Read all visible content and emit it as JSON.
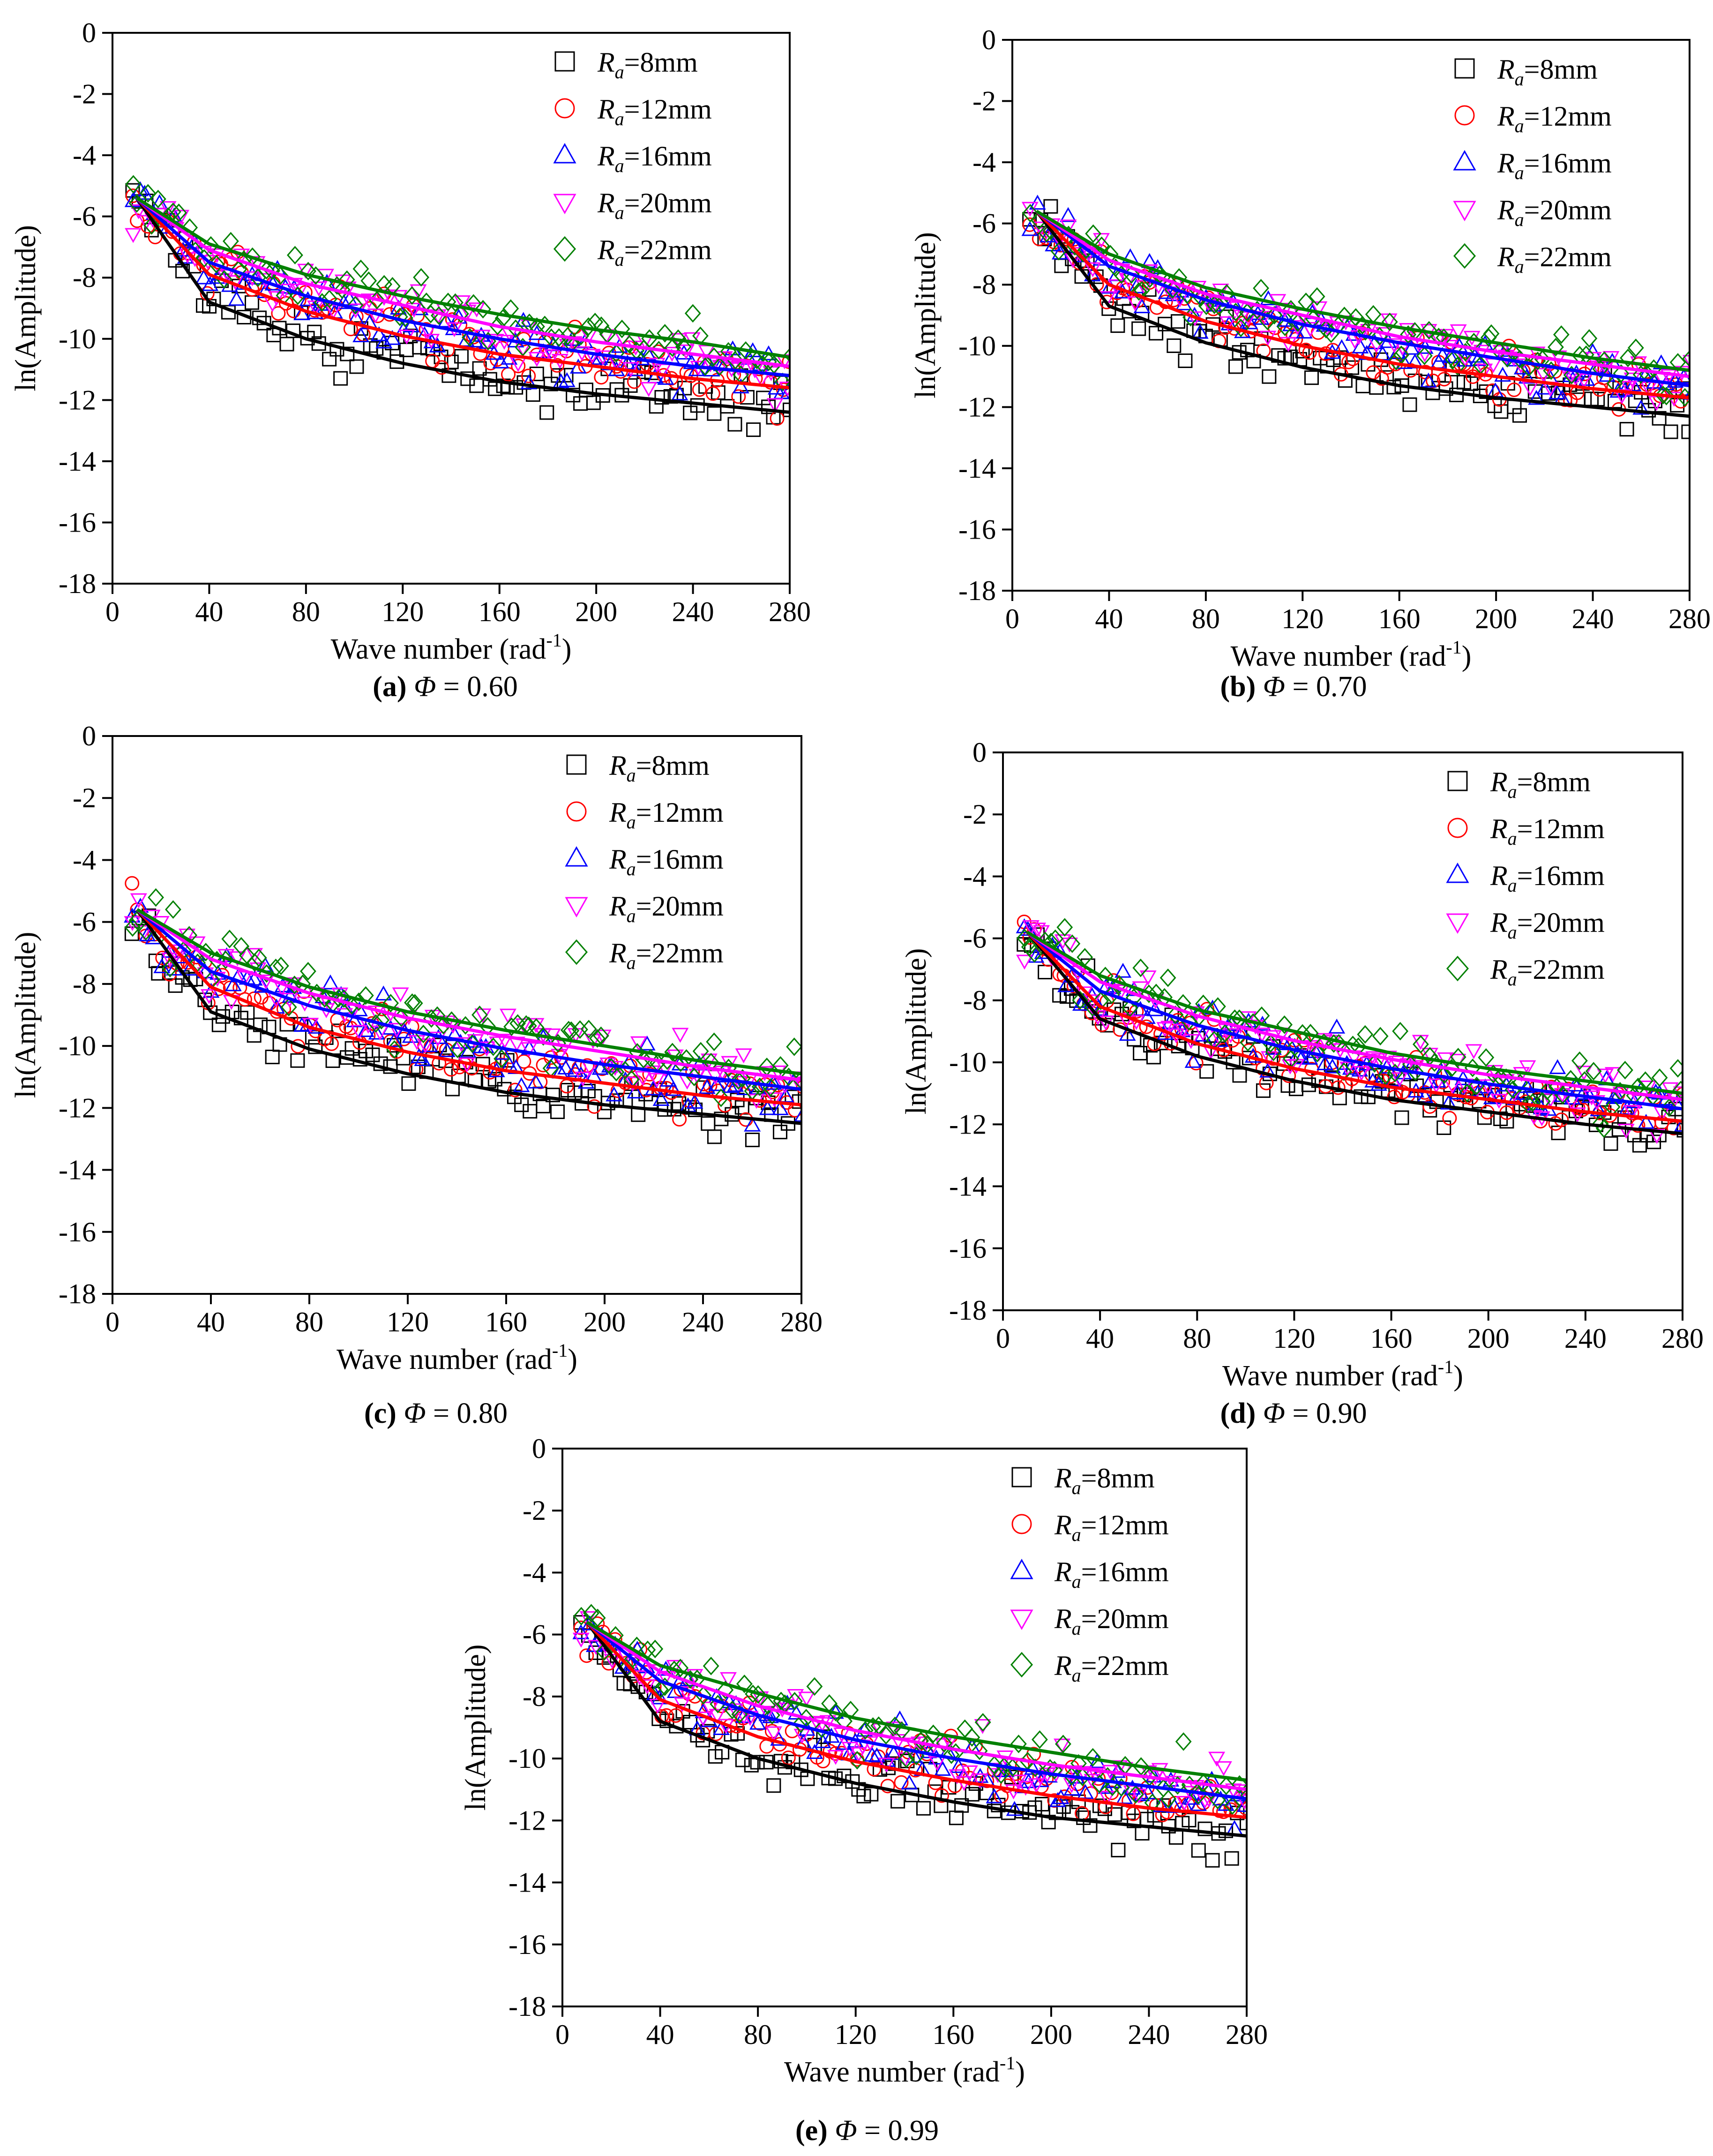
{
  "figure": {
    "common": {
      "xlabel": "Wave number (rad",
      "xlabel_sup": "-1",
      "xlabel_end": ")",
      "ylabel": "ln(Amplitude)",
      "xticks": [
        "0",
        "40",
        "80",
        "120",
        "160",
        "200",
        "240",
        "280"
      ],
      "yticks": [
        "0",
        "-2",
        "-4",
        "-6",
        "-8",
        "-10",
        "-12",
        "-14",
        "-16",
        "-18"
      ],
      "legend_prefix": "R",
      "legend_sub": "a",
      "phi_symbol": "Φ",
      "equals": " = "
    },
    "panels": [
      {
        "id": "a",
        "letter": "(a)",
        "phi": "0.60"
      },
      {
        "id": "b",
        "letter": "(b)",
        "phi": "0.70"
      },
      {
        "id": "c",
        "letter": "(c)",
        "phi": "0.80"
      },
      {
        "id": "d",
        "letter": "(d)",
        "phi": "0.90"
      },
      {
        "id": "e",
        "letter": "(e)",
        "phi": "0.99"
      }
    ]
  },
  "colors": {
    "black": "#000000",
    "red": "#ff0000",
    "blue": "#0000ff",
    "magenta": "#ff00ff",
    "green": "#008000"
  },
  "chart_data": [
    {
      "panel": "a",
      "type": "scatter",
      "xlabel": "Wave number (rad-1)",
      "ylabel": "ln(Amplitude)",
      "xlim": [
        0,
        280
      ],
      "ylim": [
        -18,
        0
      ],
      "legend_placement": "top-right",
      "series": [
        {
          "name": "Ra=8mm",
          "marker": "square",
          "color": "#000000",
          "fit_x": [
            10,
            40,
            80,
            120,
            160,
            200,
            240,
            280
          ],
          "fit_y": [
            -5.4,
            -8.8,
            -10.0,
            -10.8,
            -11.4,
            -11.8,
            -12.1,
            -12.4
          ]
        },
        {
          "name": "Ra=12mm",
          "marker": "circle",
          "color": "#ff0000",
          "fit_x": [
            10,
            40,
            80,
            120,
            160,
            200,
            240,
            280
          ],
          "fit_y": [
            -5.4,
            -7.9,
            -9.1,
            -9.9,
            -10.5,
            -10.9,
            -11.3,
            -11.6
          ]
        },
        {
          "name": "Ra=16mm",
          "marker": "triangle-up",
          "color": "#0000ff",
          "fit_x": [
            10,
            40,
            80,
            120,
            160,
            200,
            240,
            280
          ],
          "fit_y": [
            -5.4,
            -7.5,
            -8.6,
            -9.4,
            -10.0,
            -10.5,
            -10.9,
            -11.2
          ]
        },
        {
          "name": "Ra=20mm",
          "marker": "triangle-down",
          "color": "#ff00ff",
          "fit_x": [
            10,
            40,
            80,
            120,
            160,
            200,
            240,
            280
          ],
          "fit_y": [
            -5.4,
            -7.1,
            -8.2,
            -8.9,
            -9.6,
            -10.1,
            -10.5,
            -10.9
          ]
        },
        {
          "name": "Ra=22mm",
          "marker": "diamond",
          "color": "#008000",
          "fit_x": [
            10,
            40,
            80,
            120,
            160,
            200,
            240,
            280
          ],
          "fit_y": [
            -5.4,
            -6.9,
            -7.9,
            -8.6,
            -9.2,
            -9.7,
            -10.1,
            -10.6
          ]
        }
      ]
    },
    {
      "panel": "b",
      "type": "scatter",
      "xlabel": "Wave number (rad-1)",
      "ylabel": "ln(Amplitude)",
      "xlim": [
        0,
        280
      ],
      "ylim": [
        -18,
        0
      ],
      "legend_placement": "top-right",
      "series": [
        {
          "name": "Ra=8mm",
          "marker": "square",
          "color": "#000000",
          "fit_x": [
            10,
            40,
            80,
            120,
            160,
            200,
            240,
            280
          ],
          "fit_y": [
            -5.6,
            -8.7,
            -9.9,
            -10.7,
            -11.3,
            -11.7,
            -12.0,
            -12.3
          ]
        },
        {
          "name": "Ra=12mm",
          "marker": "circle",
          "color": "#ff0000",
          "fit_x": [
            10,
            40,
            80,
            120,
            160,
            200,
            240,
            280
          ],
          "fit_y": [
            -5.6,
            -8.0,
            -9.2,
            -10.0,
            -10.6,
            -11.0,
            -11.4,
            -11.7
          ]
        },
        {
          "name": "Ra=16mm",
          "marker": "triangle-up",
          "color": "#0000ff",
          "fit_x": [
            10,
            40,
            80,
            120,
            160,
            200,
            240,
            280
          ],
          "fit_y": [
            -5.6,
            -7.4,
            -8.5,
            -9.3,
            -9.9,
            -10.4,
            -10.9,
            -11.3
          ]
        },
        {
          "name": "Ra=20mm",
          "marker": "triangle-down",
          "color": "#ff00ff",
          "fit_x": [
            10,
            40,
            80,
            120,
            160,
            200,
            240,
            280
          ],
          "fit_y": [
            -5.6,
            -7.2,
            -8.3,
            -9.0,
            -9.7,
            -10.2,
            -10.6,
            -11.0
          ]
        },
        {
          "name": "Ra=22mm",
          "marker": "diamond",
          "color": "#008000",
          "fit_x": [
            10,
            40,
            80,
            120,
            160,
            200,
            240,
            280
          ],
          "fit_y": [
            -5.6,
            -7.0,
            -8.1,
            -8.8,
            -9.4,
            -9.9,
            -10.4,
            -10.8
          ]
        }
      ]
    },
    {
      "panel": "c",
      "type": "scatter",
      "xlabel": "Wave number (rad-1)",
      "ylabel": "ln(Amplitude)",
      "xlim": [
        0,
        280
      ],
      "ylim": [
        -18,
        0
      ],
      "legend_placement": "top-right",
      "series": [
        {
          "name": "Ra=8mm",
          "marker": "square",
          "color": "#000000",
          "fit_x": [
            10,
            40,
            80,
            120,
            160,
            200,
            240,
            280
          ],
          "fit_y": [
            -5.6,
            -8.9,
            -10.1,
            -10.9,
            -11.5,
            -11.9,
            -12.2,
            -12.5
          ]
        },
        {
          "name": "Ra=12mm",
          "marker": "circle",
          "color": "#ff0000",
          "fit_x": [
            10,
            40,
            80,
            120,
            160,
            200,
            240,
            280
          ],
          "fit_y": [
            -5.6,
            -8.1,
            -9.4,
            -10.2,
            -10.8,
            -11.2,
            -11.6,
            -11.9
          ]
        },
        {
          "name": "Ra=16mm",
          "marker": "triangle-up",
          "color": "#0000ff",
          "fit_x": [
            10,
            40,
            80,
            120,
            160,
            200,
            240,
            280
          ],
          "fit_y": [
            -5.6,
            -7.6,
            -8.7,
            -9.5,
            -10.1,
            -10.6,
            -11.0,
            -11.4
          ]
        },
        {
          "name": "Ra=20mm",
          "marker": "triangle-down",
          "color": "#ff00ff",
          "fit_x": [
            10,
            40,
            80,
            120,
            160,
            200,
            240,
            280
          ],
          "fit_y": [
            -5.6,
            -7.2,
            -8.3,
            -9.1,
            -9.7,
            -10.2,
            -10.7,
            -11.1
          ]
        },
        {
          "name": "Ra=22mm",
          "marker": "diamond",
          "color": "#008000",
          "fit_x": [
            10,
            40,
            80,
            120,
            160,
            200,
            240,
            280
          ],
          "fit_y": [
            -5.6,
            -7.0,
            -8.1,
            -8.9,
            -9.5,
            -10.0,
            -10.5,
            -10.9
          ]
        }
      ]
    },
    {
      "panel": "d",
      "type": "scatter",
      "xlabel": "Wave number (rad-1)",
      "ylabel": "ln(Amplitude)",
      "xlim": [
        0,
        280
      ],
      "ylim": [
        -18,
        0
      ],
      "legend_placement": "top-right",
      "series": [
        {
          "name": "Ra=8mm",
          "marker": "square",
          "color": "#000000",
          "fit_x": [
            10,
            40,
            80,
            120,
            160,
            200,
            240,
            280
          ],
          "fit_y": [
            -5.8,
            -8.6,
            -9.8,
            -10.6,
            -11.2,
            -11.6,
            -12.0,
            -12.3
          ]
        },
        {
          "name": "Ra=12mm",
          "marker": "circle",
          "color": "#ff0000",
          "fit_x": [
            10,
            40,
            80,
            120,
            160,
            200,
            240,
            280
          ],
          "fit_y": [
            -5.8,
            -8.2,
            -9.4,
            -10.2,
            -10.8,
            -11.2,
            -11.6,
            -11.9
          ]
        },
        {
          "name": "Ra=16mm",
          "marker": "triangle-up",
          "color": "#0000ff",
          "fit_x": [
            10,
            40,
            80,
            120,
            160,
            200,
            240,
            280
          ],
          "fit_y": [
            -5.8,
            -7.7,
            -8.8,
            -9.6,
            -10.2,
            -10.7,
            -11.1,
            -11.5
          ]
        },
        {
          "name": "Ra=20mm",
          "marker": "triangle-down",
          "color": "#ff00ff",
          "fit_x": [
            10,
            40,
            80,
            120,
            160,
            200,
            240,
            280
          ],
          "fit_y": [
            -5.8,
            -7.4,
            -8.5,
            -9.3,
            -9.9,
            -10.4,
            -10.8,
            -11.2
          ]
        },
        {
          "name": "Ra=22mm",
          "marker": "diamond",
          "color": "#008000",
          "fit_x": [
            10,
            40,
            80,
            120,
            160,
            200,
            240,
            280
          ],
          "fit_y": [
            -5.8,
            -7.2,
            -8.3,
            -9.0,
            -9.7,
            -10.2,
            -10.6,
            -11.0
          ]
        }
      ]
    },
    {
      "panel": "e",
      "type": "scatter",
      "xlabel": "Wave number (rad-1)",
      "ylabel": "ln(Amplitude)",
      "xlim": [
        0,
        280
      ],
      "ylim": [
        -18,
        0
      ],
      "legend_placement": "top-right",
      "series": [
        {
          "name": "Ra=8mm",
          "marker": "square",
          "color": "#000000",
          "fit_x": [
            10,
            40,
            80,
            120,
            160,
            200,
            240,
            280
          ],
          "fit_y": [
            -5.6,
            -8.8,
            -10.0,
            -10.8,
            -11.4,
            -11.9,
            -12.2,
            -12.5
          ]
        },
        {
          "name": "Ra=12mm",
          "marker": "circle",
          "color": "#ff0000",
          "fit_x": [
            10,
            40,
            80,
            120,
            160,
            200,
            240,
            280
          ],
          "fit_y": [
            -5.6,
            -8.1,
            -9.3,
            -10.1,
            -10.7,
            -11.2,
            -11.6,
            -11.9
          ]
        },
        {
          "name": "Ra=16mm",
          "marker": "triangle-up",
          "color": "#0000ff",
          "fit_x": [
            10,
            40,
            80,
            120,
            160,
            200,
            240,
            280
          ],
          "fit_y": [
            -5.6,
            -7.5,
            -8.6,
            -9.4,
            -10.0,
            -10.5,
            -10.9,
            -11.3
          ]
        },
        {
          "name": "Ra=20mm",
          "marker": "triangle-down",
          "color": "#ff00ff",
          "fit_x": [
            10,
            40,
            80,
            120,
            160,
            200,
            240,
            280
          ],
          "fit_y": [
            -5.6,
            -7.2,
            -8.3,
            -9.1,
            -9.7,
            -10.2,
            -10.6,
            -11.0
          ]
        },
        {
          "name": "Ra=22mm",
          "marker": "diamond",
          "color": "#008000",
          "fit_x": [
            10,
            40,
            80,
            120,
            160,
            200,
            240,
            280
          ],
          "fit_y": [
            -5.6,
            -7.0,
            -7.9,
            -8.7,
            -9.3,
            -9.8,
            -10.3,
            -10.7
          ]
        }
      ]
    }
  ]
}
